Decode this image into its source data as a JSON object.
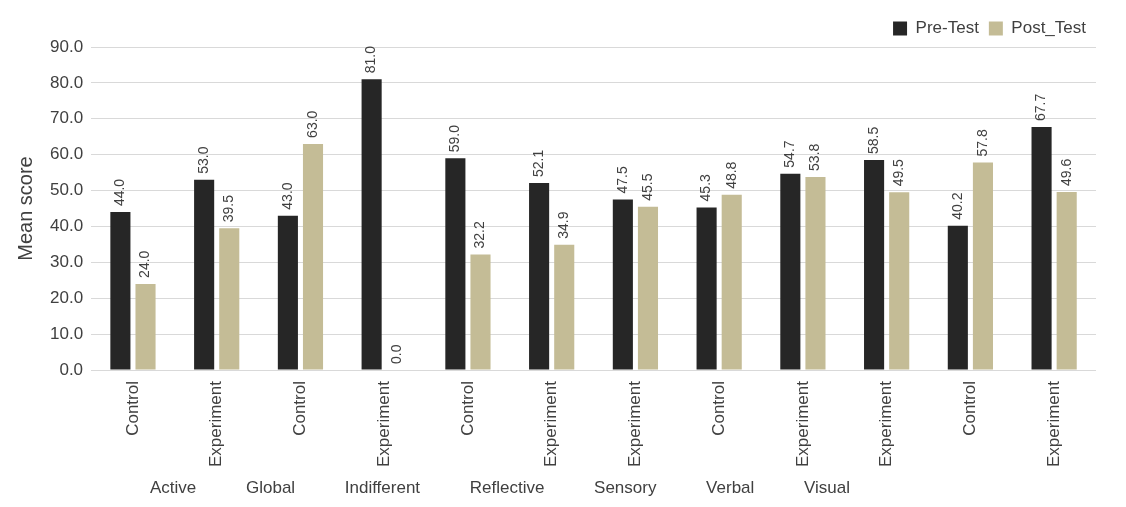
{
  "chart_data": {
    "type": "bar",
    "ylabel": "Mean score",
    "categories": [
      "Control",
      "Experiment",
      "Control",
      "Experiment",
      "Control",
      "Experiment",
      "Experiment",
      "Control",
      "Experiment",
      "Experiment",
      "Control",
      "Experiment"
    ],
    "series": [
      {
        "name": "Pre-Test",
        "color": "#262626",
        "values": [
          44.0,
          53.0,
          43.0,
          81.0,
          59.0,
          52.1,
          47.5,
          45.3,
          54.7,
          58.5,
          40.2,
          67.7
        ],
        "value_labels": [
          "44.0",
          "53.0",
          "43.0",
          "81.0",
          "59.0",
          "52.1",
          "47.5",
          "45.3",
          "54.7",
          "58.5",
          "40.2",
          "67.7"
        ]
      },
      {
        "name": "Post_Test",
        "color": "#c4bc96",
        "values": [
          24.0,
          39.5,
          63.0,
          0.0,
          32.2,
          34.9,
          45.5,
          48.8,
          53.8,
          49.5,
          57.8,
          49.6
        ],
        "value_labels": [
          "24.0",
          "39.5",
          "63.0",
          "0.0",
          "32.2",
          "34.9",
          "45.5",
          "48.8",
          "53.8",
          "49.5",
          "57.8",
          "49.6"
        ]
      }
    ],
    "ylim": [
      0,
      90
    ],
    "yticks": [
      {
        "value": 0,
        "label": "0.0"
      },
      {
        "value": 10,
        "label": "10.0"
      },
      {
        "value": 20,
        "label": "20.0"
      },
      {
        "value": 30,
        "label": "30.0"
      },
      {
        "value": 40,
        "label": "40.0"
      },
      {
        "value": 50,
        "label": "50.0"
      },
      {
        "value": 60,
        "label": "60.0"
      },
      {
        "value": 70,
        "label": "70.0"
      },
      {
        "value": 80,
        "label": "80.0"
      },
      {
        "value": 90,
        "label": "90.0"
      }
    ],
    "grid": "y",
    "legend": "top right",
    "annotations": [
      "Active",
      "Global",
      "Indifferent",
      "Reflective",
      "Sensory",
      "Verbal",
      "Visual"
    ]
  }
}
